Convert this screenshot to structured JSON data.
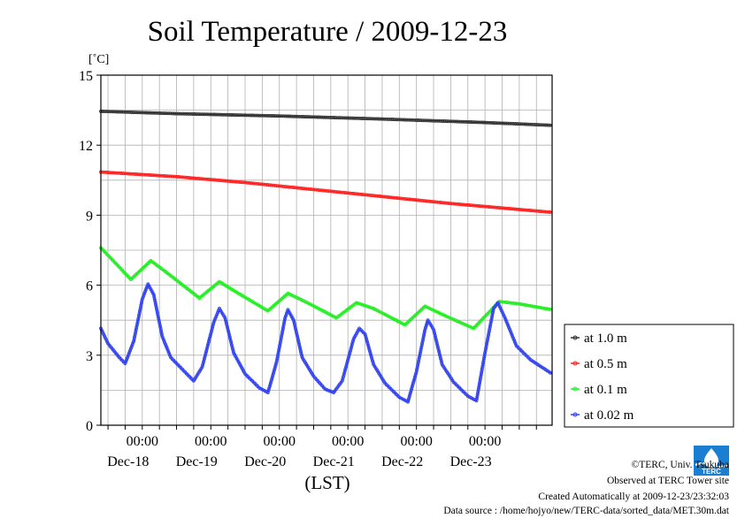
{
  "chart_data": {
    "type": "line",
    "title": "Soil Temperature / 2009-12-23",
    "unit_label": "[˚C]",
    "xlabel": "(LST)",
    "ylim": [
      0,
      15
    ],
    "yticks": [
      0,
      3,
      6,
      9,
      12,
      15
    ],
    "xlim": [
      "2009-12-17T09:30",
      "2009-12-23T23:30"
    ],
    "time_ticks": [
      "00:00",
      "00:00",
      "00:00",
      "00:00",
      "00:00",
      "00:00"
    ],
    "date_ticks": [
      "Dec-18",
      "Dec-19",
      "Dec-20",
      "Dec-21",
      "Dec-22",
      "Dec-23"
    ],
    "grid": true,
    "legend_position": "right",
    "series": [
      {
        "name": "at 1.0 m",
        "color": "#333333",
        "points": [
          [
            "2009-12-17T09:30",
            13.45
          ],
          [
            "2009-12-18T12:00",
            13.35
          ],
          [
            "2009-12-20T00:00",
            13.25
          ],
          [
            "2009-12-21T12:00",
            13.12
          ],
          [
            "2009-12-23T00:00",
            12.97
          ],
          [
            "2009-12-23T23:30",
            12.85
          ]
        ]
      },
      {
        "name": "at 0.5 m",
        "color": "#ff2020",
        "points": [
          [
            "2009-12-17T09:30",
            10.85
          ],
          [
            "2009-12-18T12:00",
            10.65
          ],
          [
            "2009-12-19T12:00",
            10.4
          ],
          [
            "2009-12-20T12:00",
            10.1
          ],
          [
            "2009-12-21T12:00",
            9.8
          ],
          [
            "2009-12-22T12:00",
            9.5
          ],
          [
            "2009-12-23T23:30",
            9.12
          ]
        ]
      },
      {
        "name": "at 0.1 m",
        "color": "#22ee22",
        "points": [
          [
            "2009-12-17T09:30",
            7.6
          ],
          [
            "2009-12-17T15:00",
            6.9
          ],
          [
            "2009-12-17T20:00",
            6.25
          ],
          [
            "2009-12-18T03:00",
            7.05
          ],
          [
            "2009-12-18T09:00",
            6.5
          ],
          [
            "2009-12-18T20:00",
            5.45
          ],
          [
            "2009-12-19T03:00",
            6.15
          ],
          [
            "2009-12-19T09:00",
            5.7
          ],
          [
            "2009-12-19T20:00",
            4.9
          ],
          [
            "2009-12-20T03:00",
            5.65
          ],
          [
            "2009-12-20T09:00",
            5.3
          ],
          [
            "2009-12-20T20:00",
            4.6
          ],
          [
            "2009-12-21T03:00",
            5.25
          ],
          [
            "2009-12-21T09:00",
            5.0
          ],
          [
            "2009-12-21T20:00",
            4.3
          ],
          [
            "2009-12-22T03:00",
            5.1
          ],
          [
            "2009-12-22T09:00",
            4.75
          ],
          [
            "2009-12-22T20:00",
            4.15
          ],
          [
            "2009-12-23T05:00",
            5.3
          ],
          [
            "2009-12-23T12:00",
            5.2
          ],
          [
            "2009-12-23T23:30",
            4.95
          ]
        ]
      },
      {
        "name": "at 0.02 m",
        "color": "#3344ee",
        "points": [
          [
            "2009-12-17T09:30",
            4.15
          ],
          [
            "2009-12-17T12:00",
            3.5
          ],
          [
            "2009-12-17T16:00",
            2.9
          ],
          [
            "2009-12-17T18:00",
            2.65
          ],
          [
            "2009-12-17T21:00",
            3.6
          ],
          [
            "2009-12-18T00:00",
            5.4
          ],
          [
            "2009-12-18T02:00",
            6.05
          ],
          [
            "2009-12-18T04:00",
            5.6
          ],
          [
            "2009-12-18T07:00",
            3.8
          ],
          [
            "2009-12-18T10:00",
            2.9
          ],
          [
            "2009-12-18T14:00",
            2.4
          ],
          [
            "2009-12-18T18:00",
            1.9
          ],
          [
            "2009-12-18T21:00",
            2.5
          ],
          [
            "2009-12-19T01:00",
            4.4
          ],
          [
            "2009-12-19T03:00",
            5.0
          ],
          [
            "2009-12-19T05:00",
            4.6
          ],
          [
            "2009-12-19T08:00",
            3.1
          ],
          [
            "2009-12-19T12:00",
            2.2
          ],
          [
            "2009-12-19T17:00",
            1.6
          ],
          [
            "2009-12-19T20:00",
            1.4
          ],
          [
            "2009-12-19T23:00",
            2.7
          ],
          [
            "2009-12-20T02:00",
            4.6
          ],
          [
            "2009-12-20T03:00",
            4.95
          ],
          [
            "2009-12-20T05:00",
            4.5
          ],
          [
            "2009-12-20T08:00",
            2.9
          ],
          [
            "2009-12-20T12:00",
            2.1
          ],
          [
            "2009-12-20T16:00",
            1.55
          ],
          [
            "2009-12-20T19:00",
            1.4
          ],
          [
            "2009-12-20T22:00",
            1.9
          ],
          [
            "2009-12-21T02:00",
            3.7
          ],
          [
            "2009-12-21T04:00",
            4.15
          ],
          [
            "2009-12-21T06:00",
            3.9
          ],
          [
            "2009-12-21T09:00",
            2.6
          ],
          [
            "2009-12-21T13:00",
            1.8
          ],
          [
            "2009-12-21T18:00",
            1.2
          ],
          [
            "2009-12-21T21:00",
            1.0
          ],
          [
            "2009-12-22T00:00",
            2.3
          ],
          [
            "2009-12-22T03:00",
            4.1
          ],
          [
            "2009-12-22T04:00",
            4.5
          ],
          [
            "2009-12-22T06:00",
            4.1
          ],
          [
            "2009-12-22T09:00",
            2.6
          ],
          [
            "2009-12-22T13:00",
            1.85
          ],
          [
            "2009-12-22T18:00",
            1.25
          ],
          [
            "2009-12-22T21:00",
            1.05
          ],
          [
            "2009-12-23T00:00",
            3.1
          ],
          [
            "2009-12-23T03:00",
            5.0
          ],
          [
            "2009-12-23T04:30",
            5.25
          ],
          [
            "2009-12-23T07:00",
            4.6
          ],
          [
            "2009-12-23T11:00",
            3.4
          ],
          [
            "2009-12-23T16:00",
            2.8
          ],
          [
            "2009-12-23T23:30",
            2.2
          ]
        ]
      }
    ]
  },
  "footer": {
    "copyright": "©TERC, Univ. Tsukuba",
    "observed": "Observed at TERC Tower site",
    "created": "Created Automatically at 2009-12-23/23:32:03",
    "source": "Data source : /home/hojyo/new/TERC-data/sorted_data/MET.30m.dat"
  },
  "logo": {
    "text": "TERC",
    "color": "#1a7fd0"
  }
}
